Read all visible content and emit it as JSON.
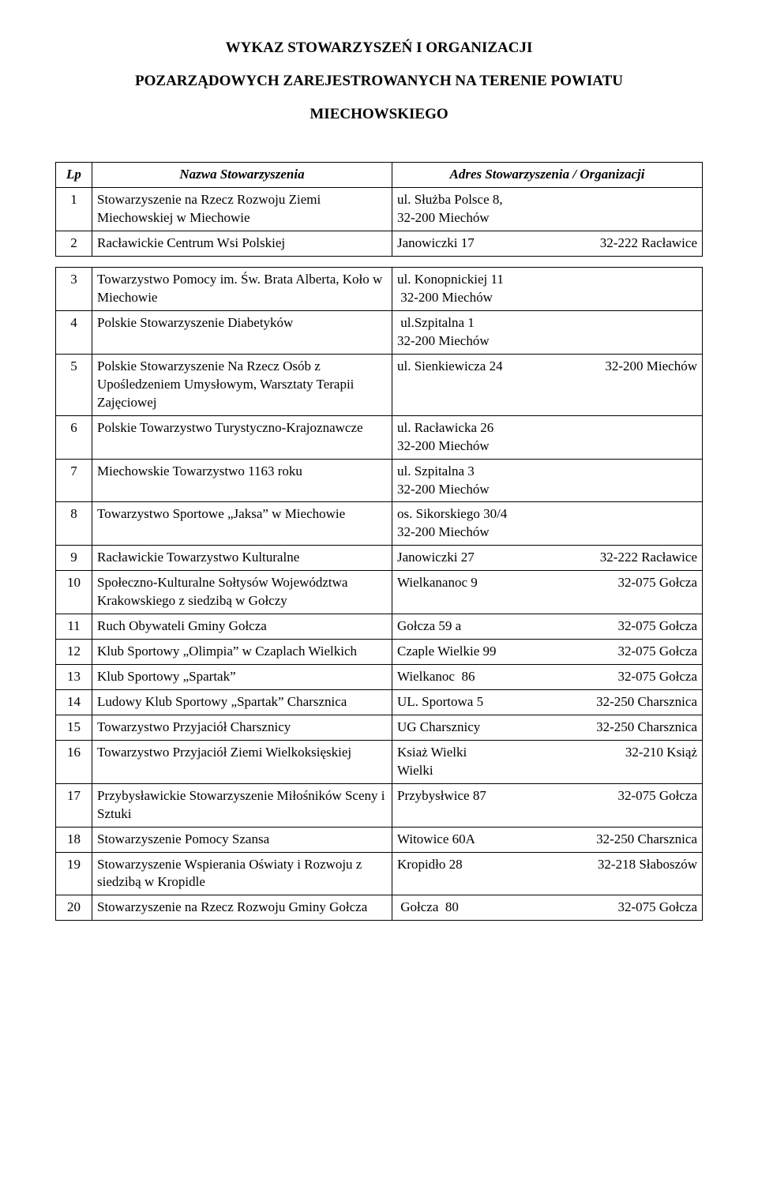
{
  "title_lines": [
    "WYKAZ STOWARZYSZEŃ I ORGANIZACJI",
    "POZARZĄDOWYCH  ZAREJESTROWANYCH  NA  TERENIE POWIATU",
    "MIECHOWSKIEGO"
  ],
  "header": {
    "lp": "Lp",
    "name": "Nazwa Stowarzyszenia",
    "addr": "Adres Stowarzyszenia / Organizacji"
  },
  "rows_top": [
    {
      "lp": "1",
      "name": "Stowarzyszenie na Rzecz Rozwoju Ziemi Miechowskiej w Miechowie",
      "addr_plain": "ul. Służba Polsce 8,\n32-200 Miechów"
    },
    {
      "lp": "2",
      "name": "Racławickie Centrum Wsi Polskiej",
      "addr_left": "Janowiczki 17",
      "addr_right": "32-222 Racławice"
    }
  ],
  "rows_bottom": [
    {
      "lp": "3",
      "name": "Towarzystwo Pomocy im. Św. Brata Alberta, Koło w Miechowie",
      "addr_plain": "ul. Konopnickiej 11\n 32-200 Miechów"
    },
    {
      "lp": "4",
      "name": "Polskie Stowarzyszenie Diabetyków",
      "addr_plain": " ul.Szpitalna 1\n32-200 Miechów"
    },
    {
      "lp": "5",
      "name": "Polskie Stowarzyszenie Na Rzecz Osób z Upośledzeniem Umysłowym, Warsztaty Terapii Zajęciowej",
      "addr_left": "ul. Sienkiewicza 24",
      "addr_right": "32-200 Miechów"
    },
    {
      "lp": "6",
      "name": "Polskie Towarzystwo Turystyczno-Krajoznawcze",
      "addr_plain": "ul. Racławicka 26\n32-200 Miechów"
    },
    {
      "lp": "7",
      "name": "Miechowskie Towarzystwo 1163 roku",
      "addr_plain": "ul. Szpitalna 3\n32-200 Miechów"
    },
    {
      "lp": "8",
      "name": "Towarzystwo Sportowe „Jaksa” w Miechowie",
      "addr_plain": "os. Sikorskiego 30/4\n32-200 Miechów"
    },
    {
      "lp": "9",
      "name": "Racławickie Towarzystwo Kulturalne",
      "addr_left": "Janowiczki 27",
      "addr_right": "32-222 Racławice"
    },
    {
      "lp": "10",
      "name": "Społeczno-Kulturalne Sołtysów Województwa Krakowskiego z siedzibą w Gołczy",
      "addr_left": "Wielkananoc 9",
      "addr_right": "32-075 Gołcza"
    },
    {
      "lp": "11",
      "name": "Ruch Obywateli Gminy Gołcza",
      "addr_left": "Gołcza 59 a",
      "addr_right": "32-075 Gołcza"
    },
    {
      "lp": "12",
      "name": "Klub Sportowy „Olimpia” w Czaplach Wielkich",
      "addr_left": "Czaple Wielkie 99",
      "addr_right": "32-075 Gołcza"
    },
    {
      "lp": "13",
      "name": "Klub Sportowy „Spartak”",
      "addr_left": "Wielkanoc  86",
      "addr_right": "32-075 Gołcza"
    },
    {
      "lp": "14",
      "name": "Ludowy Klub Sportowy „Spartak” Charsznica",
      "addr_left": "UL. Sportowa 5",
      "addr_right": "32-250 Charsznica"
    },
    {
      "lp": "15",
      "name": "Towarzystwo Przyjaciół Charsznicy",
      "addr_left": "UG Charsznicy",
      "addr_right": "32-250 Charsznica"
    },
    {
      "lp": "16",
      "name": "Towarzystwo Przyjaciół Ziemi Wielkoksięskiej",
      "addr_left": "Ksiaż Wielki\nWielki",
      "addr_right": "32-210 Książ"
    },
    {
      "lp": "17",
      "name": "Przybysławickie Stowarzyszenie Miłośników Sceny i Sztuki",
      "addr_left": "Przybysłwice 87",
      "addr_right": "32-075 Gołcza"
    },
    {
      "lp": "18",
      "name": "Stowarzyszenie Pomocy Szansa",
      "addr_left": "Witowice 60A",
      "addr_right": "32-250 Charsznica"
    },
    {
      "lp": "19",
      "name": "Stowarzyszenie Wspierania Oświaty i Rozwoju z siedzibą w Kropidle",
      "addr_left": "Kropidło 28",
      "addr_right": "32-218 Słaboszów"
    },
    {
      "lp": "20",
      "name": "Stowarzyszenie na Rzecz Rozwoju Gminy Gołcza",
      "addr_left": " Gołcza  80",
      "addr_right": "32-075 Gołcza"
    }
  ]
}
